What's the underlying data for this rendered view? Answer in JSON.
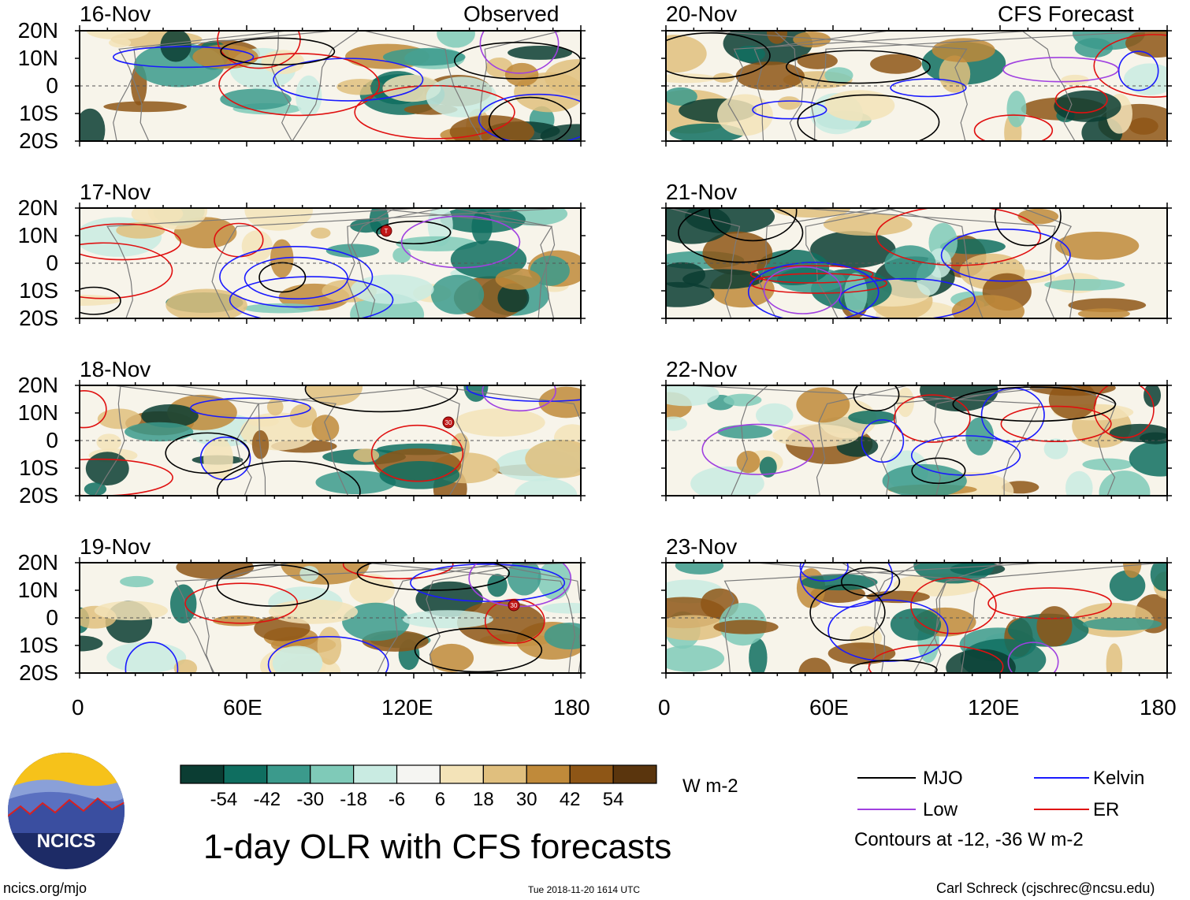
{
  "title": "1-day OLR with CFS forecasts",
  "left_column_label": "Observed",
  "right_column_label": "CFS Forecast",
  "panels_observed": [
    {
      "date": "16-Nov"
    },
    {
      "date": "17-Nov"
    },
    {
      "date": "18-Nov"
    },
    {
      "date": "19-Nov"
    }
  ],
  "panels_forecast": [
    {
      "date": "20-Nov"
    },
    {
      "date": "21-Nov"
    },
    {
      "date": "22-Nov"
    },
    {
      "date": "23-Nov"
    }
  ],
  "lat_ticks": [
    "20N",
    "10N",
    "0",
    "10S",
    "20S"
  ],
  "lon_ticks": [
    "0",
    "60E",
    "120E",
    "180"
  ],
  "storm_markers": [
    {
      "panel": "17-Nov",
      "label": "T"
    },
    {
      "panel": "18-Nov",
      "label": "30"
    },
    {
      "panel": "19-Nov",
      "label": "30"
    }
  ],
  "colorbar": {
    "ticks": [
      "-54",
      "-42",
      "-30",
      "-18",
      "-6",
      "6",
      "18",
      "30",
      "42",
      "54"
    ],
    "colors": [
      "#0b3d33",
      "#0f6e60",
      "#3b9a8c",
      "#7fcab8",
      "#c9ebe2",
      "#f5f5f2",
      "#f3e3b8",
      "#e0bf7e",
      "#c08a3a",
      "#8e5616",
      "#5a350d"
    ],
    "units": "W m-2"
  },
  "legend": {
    "items": [
      {
        "name": "MJO",
        "color": "#000000"
      },
      {
        "name": "Kelvin",
        "color": "#1a1aff"
      },
      {
        "name": "Low",
        "color": "#a040e0"
      },
      {
        "name": "ER",
        "color": "#e01010"
      }
    ],
    "note": "Contours at -12, -36 W m-2"
  },
  "footer": {
    "left": "ncics.org/mjo",
    "center": "Tue 2018-11-20 1614 UTC",
    "right": "Carl Schreck (cjschrec@ncsu.edu)"
  },
  "logo_text": "NCICS"
}
